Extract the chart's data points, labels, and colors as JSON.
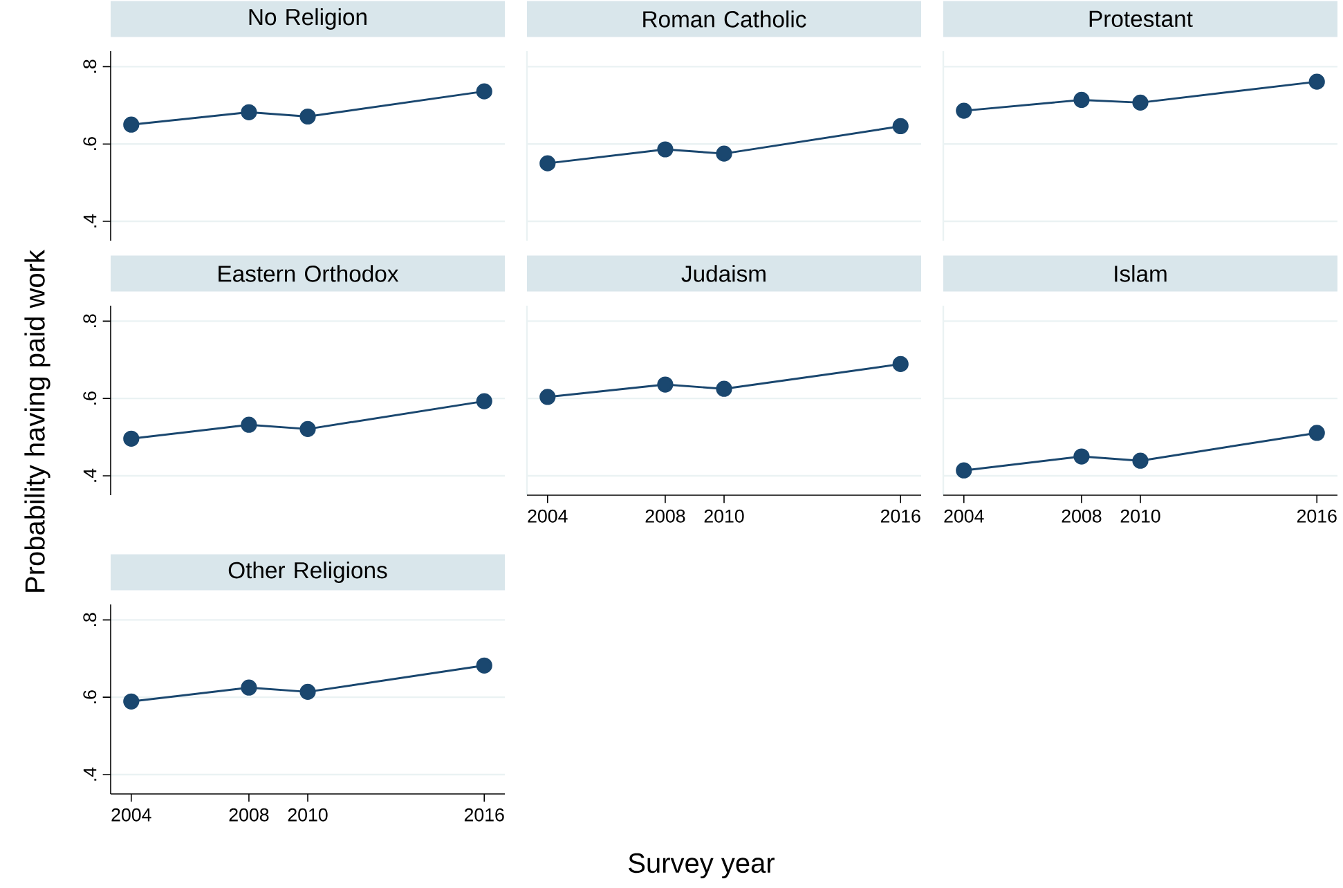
{
  "chart_data": [
    {
      "type": "line",
      "title": "No Religion",
      "ylabel": "Probability having paid work",
      "x": [
        2004,
        2008,
        2010,
        2016
      ],
      "values": [
        0.65,
        0.682,
        0.671,
        0.736
      ],
      "color": "#1a476f",
      "marker": "circle",
      "xlim": [
        2003.3,
        2016.7
      ],
      "ylim": [
        0.35,
        0.84
      ],
      "xticks": [
        2004,
        2008,
        2010,
        2016
      ],
      "yticks": [
        {
          "value": 0.4,
          "label": ".4"
        },
        {
          "value": 0.6,
          "label": ".6"
        },
        {
          "value": 0.8,
          "label": ".8"
        }
      ],
      "grid": "y",
      "tick_labels": "y"
    },
    {
      "type": "line",
      "title": "Roman Catholic",
      "x": [
        2004,
        2008,
        2010,
        2016
      ],
      "values": [
        0.55,
        0.586,
        0.575,
        0.646
      ],
      "color": "#1a476f",
      "marker": "circle",
      "xlim": [
        2003.3,
        2016.7
      ],
      "ylim": [
        0.35,
        0.84
      ],
      "xticks": [
        2004,
        2008,
        2010,
        2016
      ],
      "yticks": [
        0.4,
        0.6,
        0.8
      ],
      "grid": "y",
      "tick_labels": false
    },
    {
      "type": "line",
      "title": "Protestant",
      "x": [
        2004,
        2008,
        2010,
        2016
      ],
      "values": [
        0.686,
        0.714,
        0.707,
        0.761
      ],
      "color": "#1a476f",
      "marker": "circle",
      "xlim": [
        2003.3,
        2016.7
      ],
      "ylim": [
        0.35,
        0.84
      ],
      "xticks": [
        2004,
        2008,
        2010,
        2016
      ],
      "yticks": [
        0.4,
        0.6,
        0.8
      ],
      "grid": "y",
      "tick_labels": false
    },
    {
      "type": "line",
      "title": "Eastern Orthodox",
      "x": [
        2004,
        2008,
        2010,
        2016
      ],
      "values": [
        0.496,
        0.532,
        0.521,
        0.593
      ],
      "color": "#1a476f",
      "marker": "circle",
      "xlim": [
        2003.3,
        2016.7
      ],
      "ylim": [
        0.35,
        0.84
      ],
      "xticks": [
        2004,
        2008,
        2010,
        2016
      ],
      "yticks": [
        {
          "value": 0.4,
          "label": ".4"
        },
        {
          "value": 0.6,
          "label": ".6"
        },
        {
          "value": 0.8,
          "label": ".8"
        }
      ],
      "grid": "y",
      "tick_labels": "y"
    },
    {
      "type": "line",
      "title": "Judaism",
      "xlabel": "Survey year",
      "x": [
        2004,
        2008,
        2010,
        2016
      ],
      "values": [
        0.604,
        0.636,
        0.625,
        0.689
      ],
      "color": "#1a476f",
      "marker": "circle",
      "xlim": [
        2003.3,
        2016.7
      ],
      "ylim": [
        0.35,
        0.84
      ],
      "xticks": [
        2004,
        2008,
        2010,
        2016
      ],
      "yticks": [
        0.4,
        0.6,
        0.8
      ],
      "grid": "y",
      "tick_labels": "x"
    },
    {
      "type": "line",
      "title": "Islam",
      "x": [
        2004,
        2008,
        2010,
        2016
      ],
      "values": [
        0.414,
        0.45,
        0.439,
        0.511
      ],
      "color": "#1a476f",
      "marker": "circle",
      "xlim": [
        2003.3,
        2016.7
      ],
      "ylim": [
        0.35,
        0.84
      ],
      "xticks": [
        2004,
        2008,
        2010,
        2016
      ],
      "yticks": [
        0.4,
        0.6,
        0.8
      ],
      "grid": "y",
      "tick_labels": "x"
    },
    {
      "type": "line",
      "title": "Other Religions",
      "x": [
        2004,
        2008,
        2010,
        2016
      ],
      "values": [
        0.589,
        0.625,
        0.614,
        0.682
      ],
      "color": "#1a476f",
      "marker": "circle",
      "xlim": [
        2003.3,
        2016.7
      ],
      "ylim": [
        0.35,
        0.84
      ],
      "xticks": [
        2004,
        2008,
        2010,
        2016
      ],
      "yticks": [
        {
          "value": 0.4,
          "label": ".4"
        },
        {
          "value": 0.6,
          "label": ".6"
        },
        {
          "value": 0.8,
          "label": ".8"
        }
      ],
      "grid": "y"
    }
  ]
}
